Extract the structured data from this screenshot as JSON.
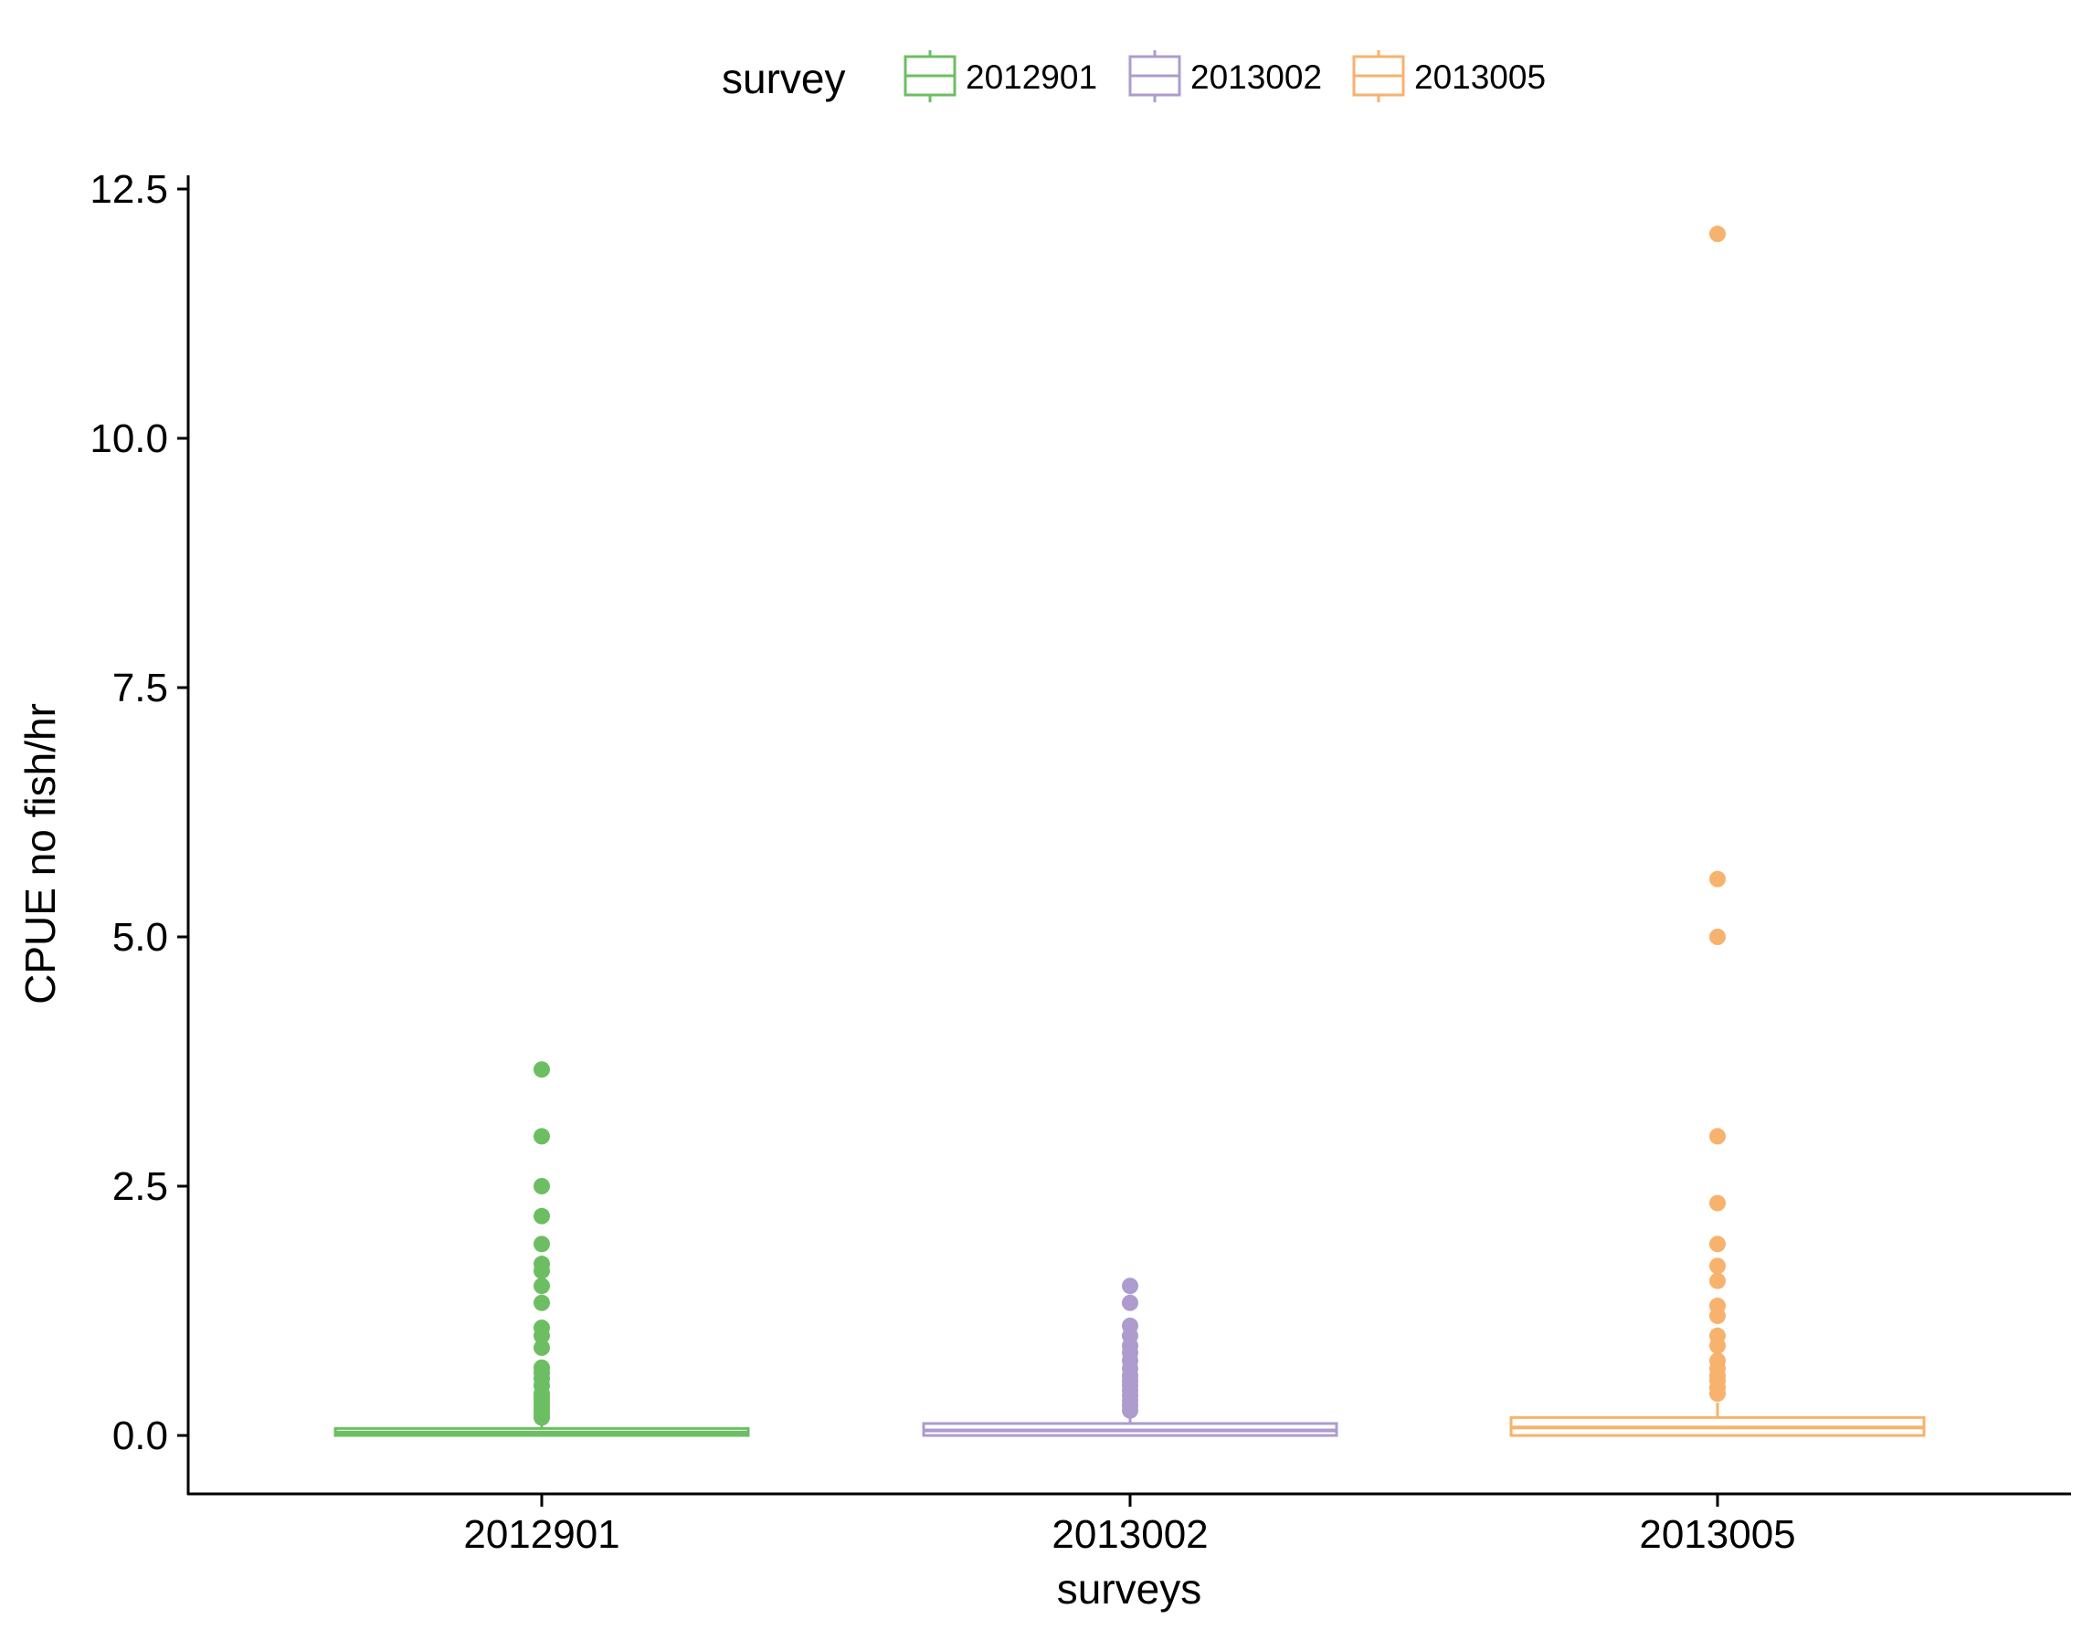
{
  "chart_data": {
    "type": "box",
    "xlabel": "surveys",
    "ylabel": "CPUE no fish/hr",
    "ylim": [
      -0.6,
      12.7
    ],
    "yticks": [
      0,
      2.5,
      5,
      7.5,
      10,
      12.5
    ],
    "ytick_labels": [
      "0.0",
      "2.5",
      "5.0",
      "7.5",
      "10.0",
      "12.5"
    ],
    "grid": false,
    "legend": {
      "title": "survey",
      "position": "top"
    },
    "categories": [
      "2012901",
      "2013002",
      "2013005"
    ],
    "series": [
      {
        "name": "2012901",
        "color": "#6dbe63",
        "box": {
          "min": 0,
          "q1": 0,
          "median": 0.03,
          "q3": 0.07,
          "max": 0.15
        },
        "outliers": [
          0.18,
          0.22,
          0.26,
          0.3,
          0.34,
          0.38,
          0.42,
          0.5,
          0.57,
          0.63,
          0.68,
          0.88,
          1.0,
          1.08,
          1.33,
          1.5,
          1.65,
          1.72,
          1.92,
          2.2,
          2.5,
          3.0,
          3.67
        ]
      },
      {
        "name": "2013002",
        "color": "#ad9ccd",
        "box": {
          "min": 0,
          "q1": 0,
          "median": 0.05,
          "q3": 0.12,
          "max": 0.17
        },
        "outliers": [
          0.25,
          0.3,
          0.35,
          0.4,
          0.45,
          0.5,
          0.55,
          0.6,
          0.67,
          0.75,
          0.83,
          0.9,
          1.0,
          1.1,
          1.33,
          1.5
        ]
      },
      {
        "name": "2013005",
        "color": "#f7b26d",
        "box": {
          "min": 0,
          "q1": 0,
          "median": 0.08,
          "q3": 0.18,
          "max": 0.33
        },
        "outliers": [
          0.42,
          0.48,
          0.55,
          0.6,
          0.67,
          0.75,
          0.9,
          1.0,
          1.2,
          1.3,
          1.55,
          1.7,
          1.92,
          2.33,
          3.0,
          5.0,
          5.58,
          12.05
        ]
      }
    ]
  }
}
